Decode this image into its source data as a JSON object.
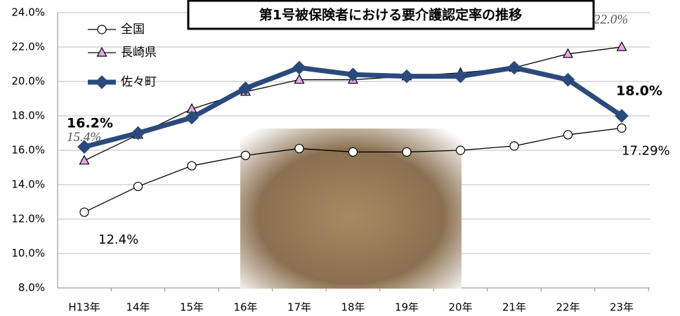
{
  "chart_data": {
    "type": "line",
    "title": "第1号被保険者における要介護認定率の推移",
    "categories": [
      "H13年",
      "14年",
      "15年",
      "16年",
      "17年",
      "18年",
      "19年",
      "20年",
      "21年",
      "22年",
      "23年"
    ],
    "series": [
      {
        "name": "全国",
        "color": "#000000",
        "marker": "circle",
        "marker_color": "#ffffff",
        "values": [
          12.4,
          13.9,
          15.1,
          15.7,
          16.1,
          15.9,
          15.9,
          16.0,
          16.25,
          16.9,
          17.29
        ],
        "value_labels": [
          "12.4%",
          null,
          null,
          null,
          null,
          null,
          null,
          null,
          null,
          null,
          "17.29%"
        ]
      },
      {
        "name": "長崎県",
        "color": "#000000",
        "marker": "triangle",
        "marker_color": "#e8a8e8",
        "values": [
          15.4,
          16.9,
          18.4,
          19.4,
          20.1,
          20.1,
          20.3,
          20.5,
          20.8,
          21.6,
          22.0
        ],
        "value_labels": [
          "15.4%",
          null,
          null,
          null,
          null,
          null,
          null,
          null,
          null,
          null,
          "22.0%"
        ]
      },
      {
        "name": "佐々町",
        "color": "#2b4a7c",
        "marker": "diamond",
        "marker_color": "#2b4a7c",
        "values": [
          16.2,
          17.0,
          17.9,
          19.6,
          20.8,
          20.4,
          20.3,
          20.3,
          20.8,
          20.1,
          18.0
        ],
        "value_labels": [
          "16.2%",
          null,
          null,
          null,
          null,
          null,
          null,
          null,
          null,
          null,
          "18.0%"
        ]
      }
    ],
    "ylim": [
      8,
      24
    ],
    "yticks": [
      {
        "value": 8,
        "label": "8.0%"
      },
      {
        "value": 10,
        "label": "10.0%"
      },
      {
        "value": 12,
        "label": "12.0%"
      },
      {
        "value": 14,
        "label": "14.0%"
      },
      {
        "value": 16,
        "label": "16.0%"
      },
      {
        "value": 18,
        "label": "18.0%"
      },
      {
        "value": 20,
        "label": "20.0%"
      },
      {
        "value": 22,
        "label": "22.0%"
      },
      {
        "value": 24,
        "label": "24.0%"
      }
    ],
    "grid": true
  }
}
